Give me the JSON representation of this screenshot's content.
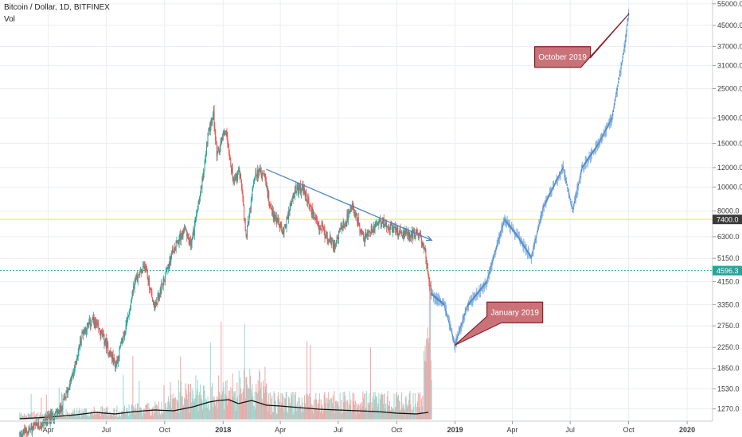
{
  "header": {
    "title": "Bitcoin / Dollar, 1D, BITFINEX",
    "indicator": "Vol"
  },
  "chart_data": {
    "type": "candlestick",
    "symbol": "Bitcoin / Dollar",
    "interval": "1D",
    "exchange": "BITFINEX",
    "y_scale": "log",
    "ylim": [
      1150,
      57000
    ],
    "y_ticks": [
      "55000.0",
      "45000.0",
      "37000.0",
      "31000.0",
      "25000.0",
      "19000.0",
      "15000.0",
      "12000.0",
      "10000.0",
      "8000.0",
      "6300.0",
      "5150.0",
      "4150.0",
      "3350.0",
      "2750.0",
      "2250.0",
      "1850.0",
      "1530.0",
      "1270.0"
    ],
    "x_ticks": [
      {
        "label": "Apr",
        "bold": false
      },
      {
        "label": "Jul",
        "bold": false
      },
      {
        "label": "Oct",
        "bold": false
      },
      {
        "label": "2018",
        "bold": true
      },
      {
        "label": "Apr",
        "bold": false
      },
      {
        "label": "Jul",
        "bold": false
      },
      {
        "label": "Oct",
        "bold": false
      },
      {
        "label": "2019",
        "bold": true
      },
      {
        "label": "Apr",
        "bold": false
      },
      {
        "label": "Jul",
        "bold": false
      },
      {
        "label": "Oct",
        "bold": false
      },
      {
        "label": "2020",
        "bold": true
      }
    ],
    "price_path": [
      [
        "2017-02-15",
        1000
      ],
      [
        "2017-03-20",
        1100
      ],
      [
        "2017-04-20",
        1250
      ],
      [
        "2017-05-10",
        1750
      ],
      [
        "2017-05-25",
        2600
      ],
      [
        "2017-06-10",
        2900
      ],
      [
        "2017-06-25",
        2500
      ],
      [
        "2017-07-16",
        1900
      ],
      [
        "2017-08-01",
        2700
      ],
      [
        "2017-08-15",
        4200
      ],
      [
        "2017-09-01",
        4800
      ],
      [
        "2017-09-15",
        3200
      ],
      [
        "2017-10-01",
        4300
      ],
      [
        "2017-10-15",
        5600
      ],
      [
        "2017-11-01",
        6700
      ],
      [
        "2017-11-12",
        5800
      ],
      [
        "2017-11-29",
        10500
      ],
      [
        "2017-12-08",
        16000
      ],
      [
        "2017-12-17",
        19700
      ],
      [
        "2017-12-22",
        13500
      ],
      [
        "2018-01-06",
        17000
      ],
      [
        "2018-01-17",
        10500
      ],
      [
        "2018-01-28",
        11500
      ],
      [
        "2018-02-06",
        6200
      ],
      [
        "2018-02-20",
        11400
      ],
      [
        "2018-03-05",
        11500
      ],
      [
        "2018-03-18",
        8000
      ],
      [
        "2018-04-06",
        6600
      ],
      [
        "2018-04-24",
        9700
      ],
      [
        "2018-05-06",
        9800
      ],
      [
        "2018-05-28",
        7200
      ],
      [
        "2018-06-24",
        5800
      ],
      [
        "2018-07-24",
        8300
      ],
      [
        "2018-08-10",
        6200
      ],
      [
        "2018-09-05",
        7400
      ],
      [
        "2018-10-01",
        6600
      ],
      [
        "2018-11-05",
        6400
      ],
      [
        "2018-11-14",
        5600
      ],
      [
        "2018-11-25",
        3700
      ]
    ],
    "projection_path": [
      [
        "2018-11-25",
        3700
      ],
      [
        "2018-12-15",
        3350
      ],
      [
        "2019-01-01",
        2300
      ],
      [
        "2019-01-20",
        3300
      ],
      [
        "2019-02-20",
        4150
      ],
      [
        "2019-03-20",
        7400
      ],
      [
        "2019-04-10",
        6300
      ],
      [
        "2019-05-01",
        5200
      ],
      [
        "2019-05-20",
        8300
      ],
      [
        "2019-06-20",
        12000
      ],
      [
        "2019-07-05",
        8000
      ],
      [
        "2019-07-20",
        12000
      ],
      [
        "2019-08-15",
        15000
      ],
      [
        "2019-09-05",
        19000
      ],
      [
        "2019-09-25",
        37000
      ],
      [
        "2019-10-01",
        50000
      ]
    ],
    "volume_ma_path": [
      [
        "2017-02-15",
        1
      ],
      [
        "2017-04-01",
        3
      ],
      [
        "2017-05-15",
        6
      ],
      [
        "2017-06-15",
        9
      ],
      [
        "2017-07-15",
        7
      ],
      [
        "2017-08-15",
        10
      ],
      [
        "2017-09-15",
        12
      ],
      [
        "2017-10-15",
        11
      ],
      [
        "2017-11-15",
        16
      ],
      [
        "2017-12-10",
        22
      ],
      [
        "2017-12-25",
        24
      ],
      [
        "2018-01-10",
        25
      ],
      [
        "2018-01-25",
        20
      ],
      [
        "2018-02-15",
        24
      ],
      [
        "2018-03-10",
        18
      ],
      [
        "2018-04-01",
        17
      ],
      [
        "2018-05-01",
        15
      ],
      [
        "2018-06-01",
        13
      ],
      [
        "2018-07-01",
        12
      ],
      [
        "2018-08-01",
        11
      ],
      [
        "2018-09-01",
        10
      ],
      [
        "2018-10-01",
        8
      ],
      [
        "2018-11-01",
        7
      ],
      [
        "2018-11-20",
        9
      ]
    ],
    "horizontal_lines": [
      {
        "price": 7400.0,
        "label": "7400.0",
        "color": "#ffee00",
        "label_bg": "#3b3b3b"
      },
      {
        "price": 4596.3,
        "label": "4596.3",
        "color": "#29a79a",
        "label_bg": "#26a69a"
      }
    ],
    "trendline": {
      "from": [
        "2018-03-10",
        11800
      ],
      "to": [
        "2018-11-25",
        6100
      ],
      "color": "#4a85c5"
    },
    "callouts": [
      {
        "text": "October 2019",
        "anchor": [
          "2019-10-01",
          50000
        ]
      },
      {
        "text": "January 2019",
        "anchor": [
          "2019-01-01",
          2300
        ]
      }
    ],
    "colors": {
      "up": "#26a69a",
      "down": "#ef5350",
      "projection": "#4a85c5",
      "callout_fill": "#c97379",
      "callout_border": "#8a1d28",
      "volume_up": "#9ad7cf",
      "volume_down": "#f3a5a5",
      "grid": "#eaeef2"
    }
  }
}
